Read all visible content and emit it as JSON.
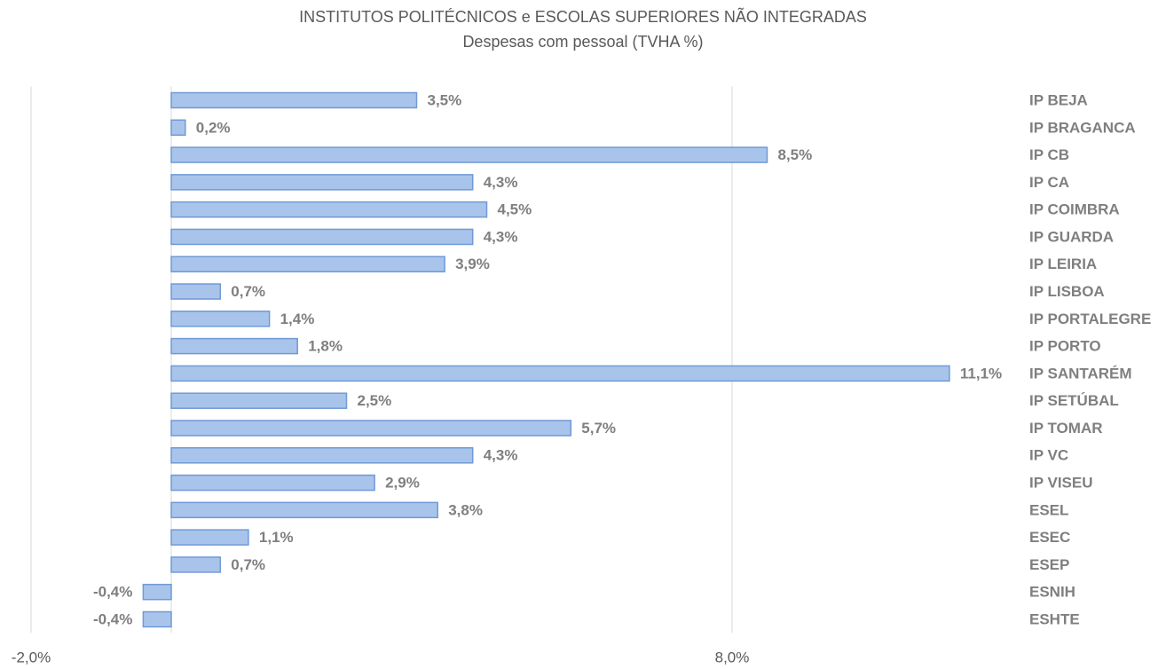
{
  "chart_data": {
    "type": "bar",
    "orientation": "horizontal",
    "title": "INSTITUTOS  POLITÉCNICOS  e ESCOLAS SUPERIORES  NÃO INTEGRADAS",
    "subtitle": "Despesas  com  pessoal  (TVHA %)",
    "categories": [
      "IP BEJA",
      "IP BRAGANCA",
      "IP CB",
      "IP CA",
      "IP COIMBRA",
      "IP GUARDA",
      "IP LEIRIA",
      "IP LISBOA",
      "IP PORTALEGRE",
      "IP PORTO",
      "IP SANTARÉM",
      "IP SETÚBAL",
      "IP TOMAR",
      "IP VC",
      "IP VISEU",
      "ESEL",
      "ESEC",
      "ESEP",
      "ESNIH",
      "ESHTE"
    ],
    "values": [
      3.5,
      0.2,
      8.5,
      4.3,
      4.5,
      4.3,
      3.9,
      0.7,
      1.4,
      1.8,
      11.1,
      2.5,
      5.7,
      4.3,
      2.9,
      3.8,
      1.1,
      0.7,
      -0.4,
      -0.4
    ],
    "value_labels": [
      "3,5%",
      "0,2%",
      "8,5%",
      "4,3%",
      "4,5%",
      "4,3%",
      "3,9%",
      "0,7%",
      "1,4%",
      "1,8%",
      "11,1%",
      "2,5%",
      "5,7%",
      "4,3%",
      "2,9%",
      "3,8%",
      "1,1%",
      "0,7%",
      "-0,4%",
      "-0,4%"
    ],
    "color": "#a9c4eb",
    "edge_color": "#6f9ad6",
    "xlim": [
      -2,
      12
    ],
    "xticks": [
      {
        "value": -2,
        "label": "-2,0%"
      },
      {
        "value": 8,
        "label": "8,0%"
      }
    ],
    "grid": true
  }
}
